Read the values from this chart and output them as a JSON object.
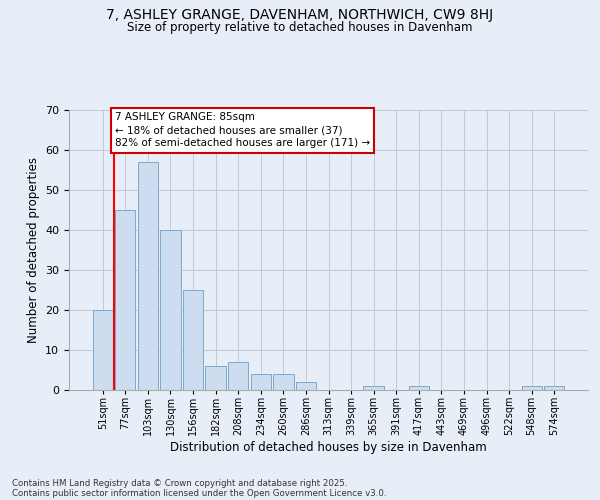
{
  "title1": "7, ASHLEY GRANGE, DAVENHAM, NORTHWICH, CW9 8HJ",
  "title2": "Size of property relative to detached houses in Davenham",
  "xlabel": "Distribution of detached houses by size in Davenham",
  "ylabel": "Number of detached properties",
  "categories": [
    "51sqm",
    "77sqm",
    "103sqm",
    "130sqm",
    "156sqm",
    "182sqm",
    "208sqm",
    "234sqm",
    "260sqm",
    "286sqm",
    "313sqm",
    "339sqm",
    "365sqm",
    "391sqm",
    "417sqm",
    "443sqm",
    "469sqm",
    "496sqm",
    "522sqm",
    "548sqm",
    "574sqm"
  ],
  "values": [
    20,
    45,
    57,
    40,
    25,
    6,
    7,
    4,
    4,
    2,
    0,
    0,
    1,
    0,
    1,
    0,
    0,
    0,
    0,
    1,
    1
  ],
  "bar_color": "#cddcee",
  "bar_edge_color": "#7aaacb",
  "red_line_x": 0.5,
  "ylim": [
    0,
    70
  ],
  "yticks": [
    0,
    10,
    20,
    30,
    40,
    50,
    60,
    70
  ],
  "annotation_text": "7 ASHLEY GRANGE: 85sqm\n← 18% of detached houses are smaller (37)\n82% of semi-detached houses are larger (171) →",
  "annotation_box_facecolor": "#ffffff",
  "annotation_box_edgecolor": "#cc0000",
  "footer1": "Contains HM Land Registry data © Crown copyright and database right 2025.",
  "footer2": "Contains public sector information licensed under the Open Government Licence v3.0.",
  "bg_color": "#e8eef8",
  "grid_color": "#c0c8dc"
}
